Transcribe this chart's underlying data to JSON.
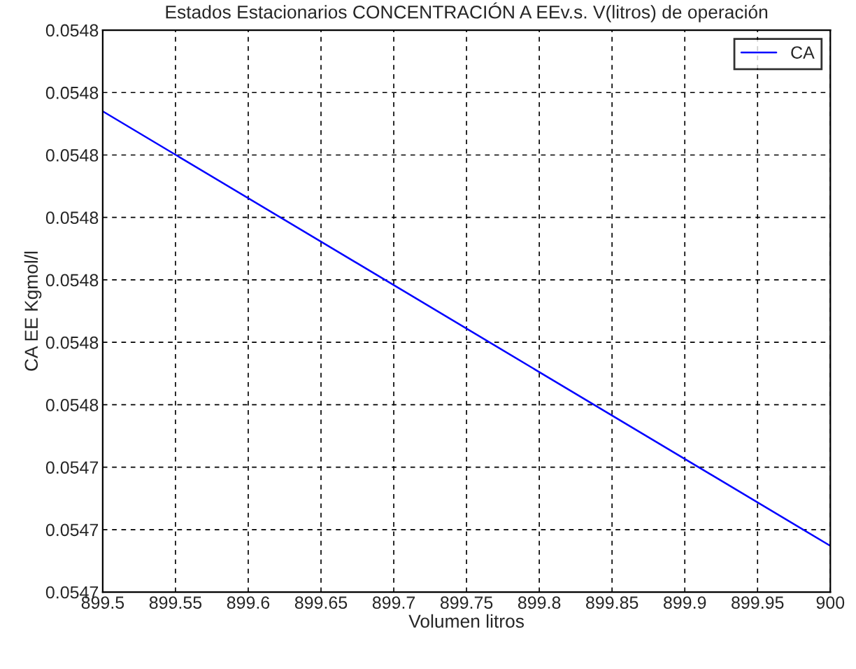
{
  "chart_data": {
    "type": "line",
    "title": "Estados Estacionarios CONCENTRACIÓN A EEv.s. V(litros) de operación",
    "xlabel": "Volumen litros",
    "ylabel": "CA EE Kgmol/l",
    "x": [
      899.5,
      900
    ],
    "series": [
      {
        "name": "CA",
        "color": "#0000ff",
        "values": [
          0.054797,
          0.0547274
        ]
      }
    ],
    "xlim": [
      899.5,
      900
    ],
    "xticks": [
      899.5,
      899.55,
      899.6,
      899.65,
      899.7,
      899.75,
      899.8,
      899.85,
      899.9,
      899.95,
      900
    ],
    "ylim": [
      0.05472,
      0.05481
    ],
    "yticks": [
      {
        "value": 0.05472,
        "label": "0.0547"
      },
      {
        "value": 0.05473,
        "label": "0.0547"
      },
      {
        "value": 0.05474,
        "label": "0.0547"
      },
      {
        "value": 0.05475,
        "label": "0.0548"
      },
      {
        "value": 0.05476,
        "label": "0.0548"
      },
      {
        "value": 0.05477,
        "label": "0.0548"
      },
      {
        "value": 0.05478,
        "label": "0.0548"
      },
      {
        "value": 0.05479,
        "label": "0.0548"
      },
      {
        "value": 0.0548,
        "label": "0.0548"
      },
      {
        "value": 0.05481,
        "label": "0.0548"
      }
    ],
    "grid": true,
    "legend": "top right",
    "line_style": "solid",
    "marker": "none"
  }
}
